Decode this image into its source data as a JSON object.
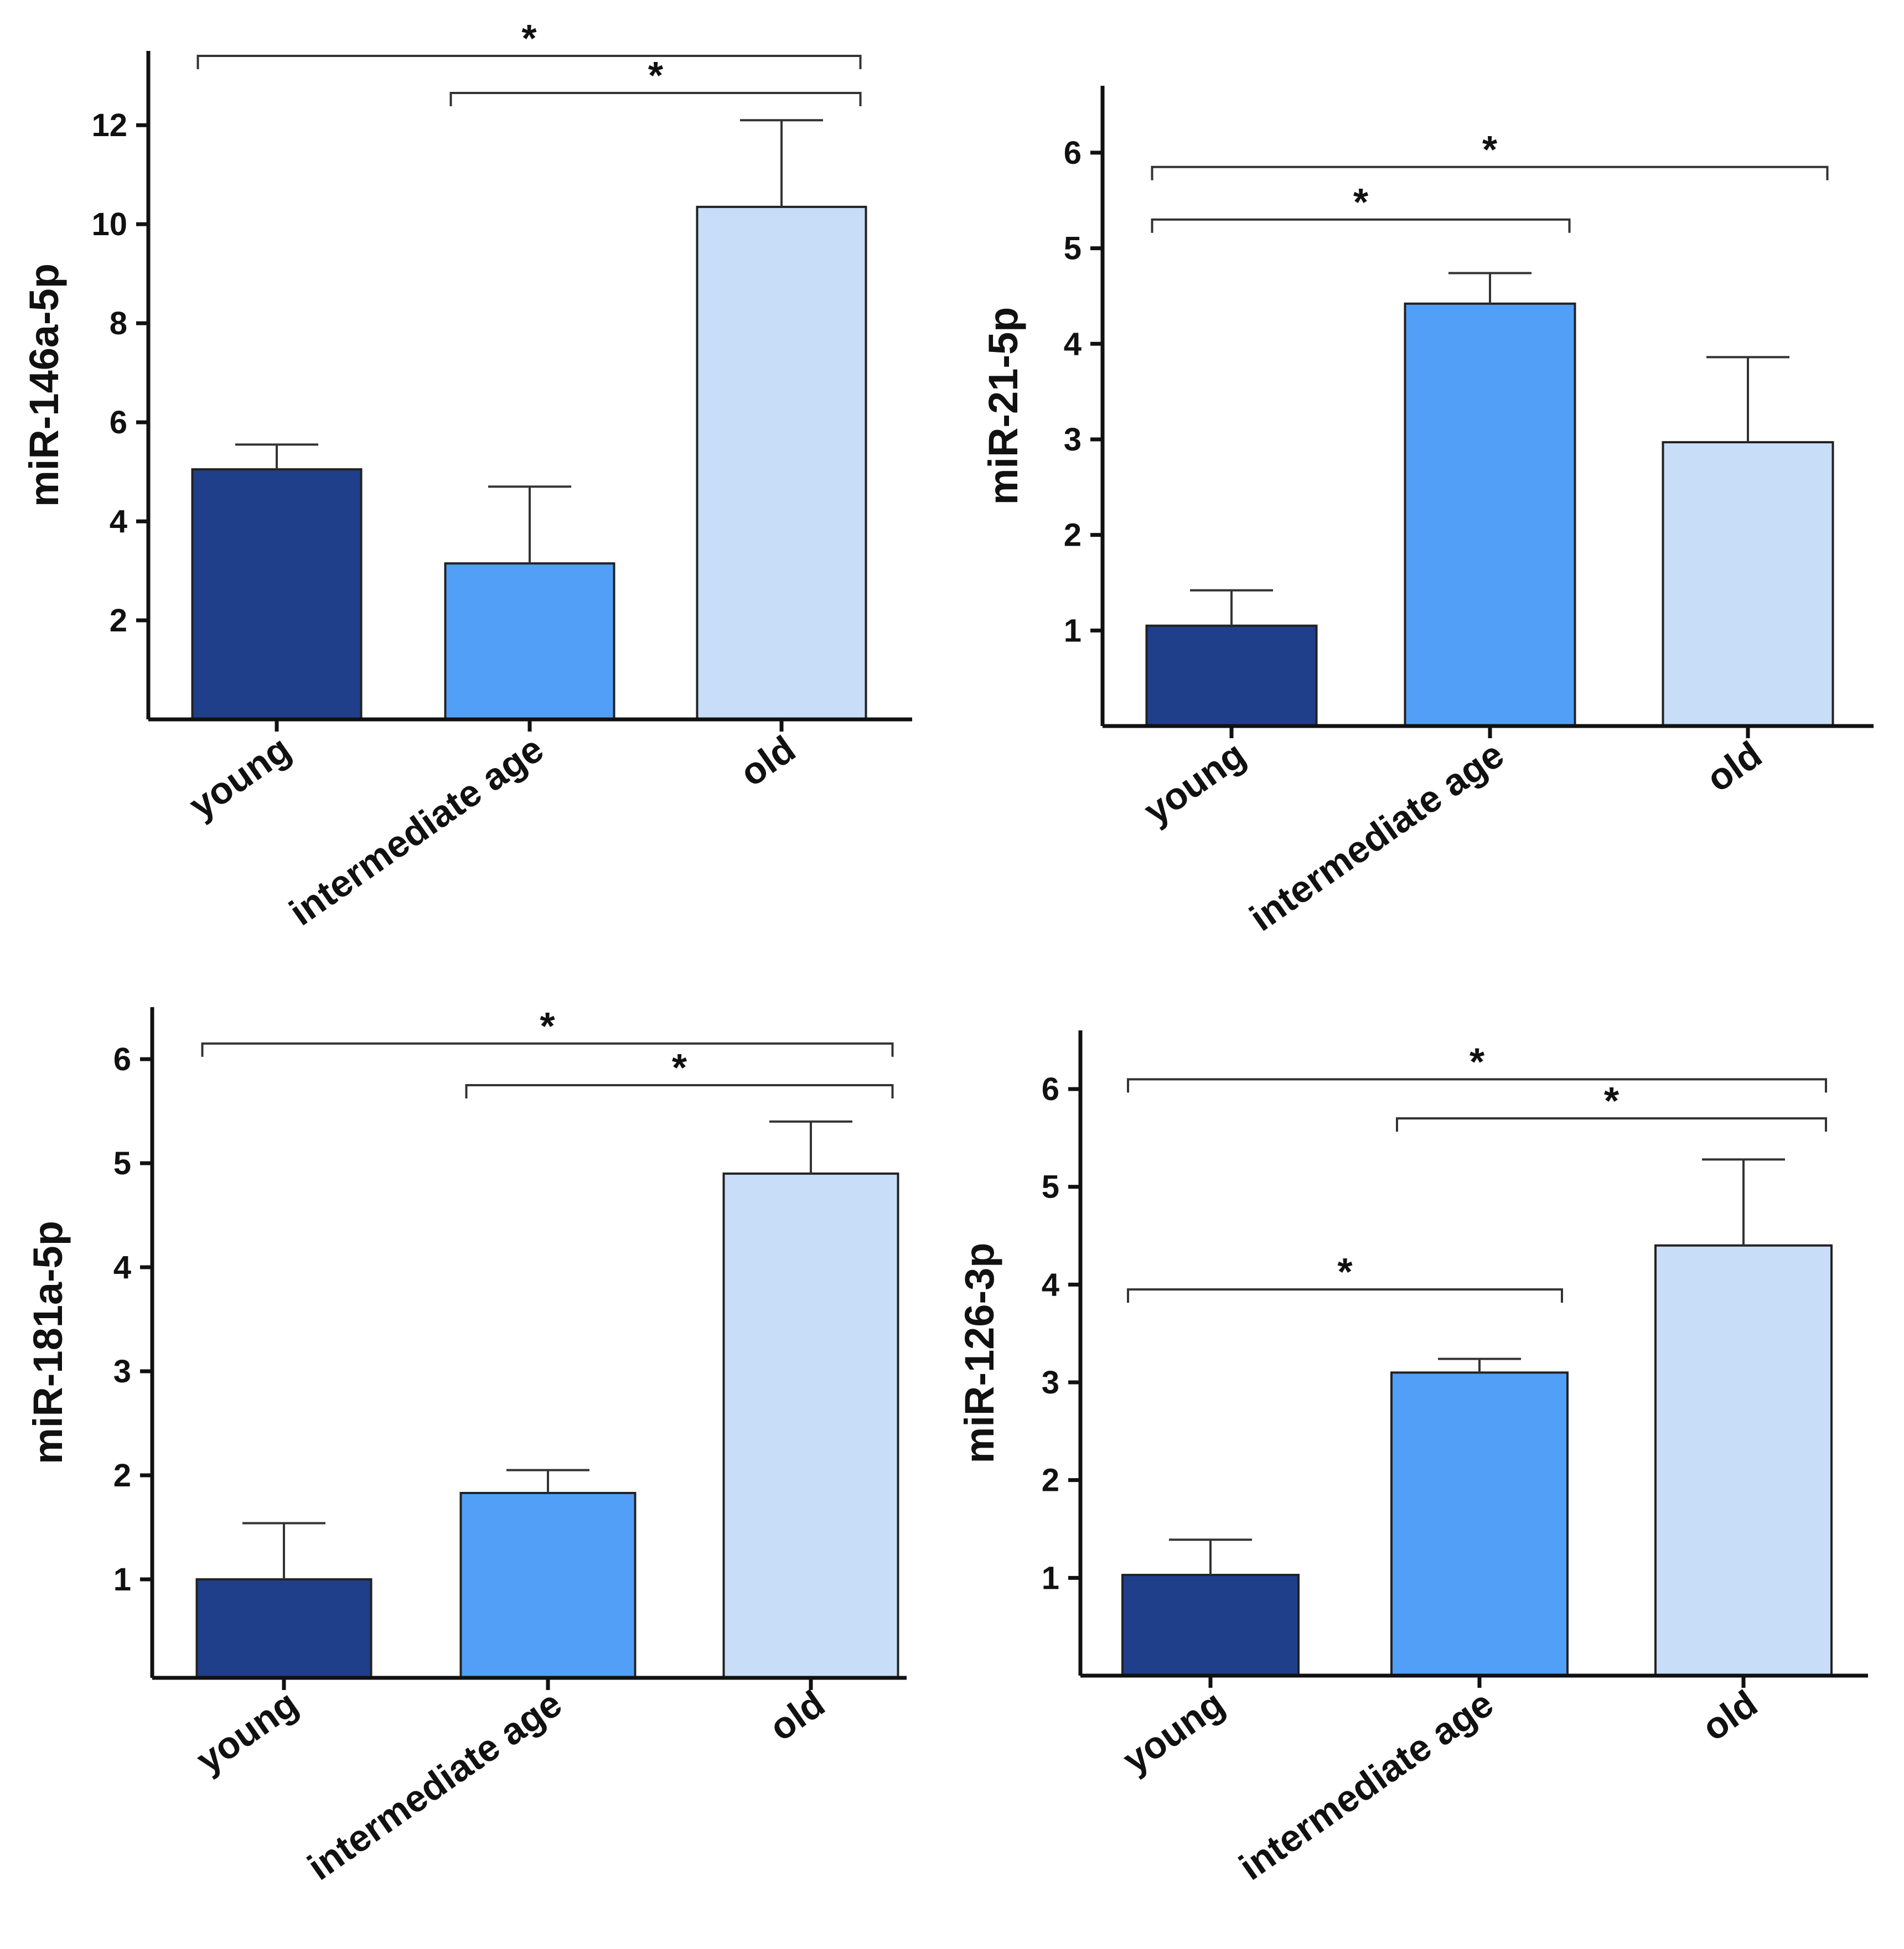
{
  "colors": {
    "young": "#1f3f8a",
    "intermediate age": "#529ff8",
    "old": "#c8ddf7"
  },
  "chart_data": [
    {
      "type": "bar",
      "ylabel": "miR-146a-5p",
      "categories": [
        "young",
        "intermediate age",
        "old"
      ],
      "values": [
        5.05,
        3.15,
        10.35
      ],
      "error_upper": [
        5.55,
        4.7,
        12.1
      ],
      "yticks": [
        2,
        4,
        6,
        8,
        10,
        12
      ],
      "ylim": [
        0,
        13.5
      ],
      "significance": [
        {
          "from": 0,
          "to": 2,
          "y": 13.4,
          "label": "*"
        },
        {
          "from": 1,
          "to": 2,
          "y": 12.65,
          "label": "*"
        }
      ]
    },
    {
      "type": "bar",
      "ylabel": "miR-21-5p",
      "categories": [
        "young",
        "intermediate age",
        "old"
      ],
      "values": [
        1.05,
        4.42,
        2.97
      ],
      "error_upper": [
        1.42,
        4.74,
        3.86
      ],
      "yticks": [
        1,
        2,
        3,
        4,
        5,
        6
      ],
      "ylim": [
        0,
        6.7
      ],
      "significance": [
        {
          "from": 0,
          "to": 2,
          "y": 5.85,
          "label": "*"
        },
        {
          "from": 0,
          "to": 1,
          "y": 5.3,
          "label": "*"
        }
      ]
    },
    {
      "type": "bar",
      "ylabel": "miR-181a-5p",
      "categories": [
        "young",
        "intermediate age",
        "old"
      ],
      "values": [
        1.0,
        1.83,
        4.9
      ],
      "error_upper": [
        1.54,
        2.05,
        5.4
      ],
      "yticks": [
        1,
        2,
        3,
        4,
        5,
        6
      ],
      "ylim": [
        0,
        6.5
      ],
      "significance": [
        {
          "from": 0,
          "to": 2,
          "y": 6.15,
          "label": "*"
        },
        {
          "from": 1,
          "to": 2,
          "y": 5.75,
          "label": "*"
        }
      ]
    },
    {
      "type": "bar",
      "ylabel": "miR-126-3p",
      "categories": [
        "young",
        "intermediate age",
        "old"
      ],
      "values": [
        1.03,
        3.1,
        4.4
      ],
      "error_upper": [
        1.39,
        3.24,
        5.28
      ],
      "yticks": [
        1,
        2,
        3,
        4,
        5,
        6
      ],
      "ylim": [
        0,
        6.6
      ],
      "significance": [
        {
          "from": 0,
          "to": 2,
          "y": 6.1,
          "label": "*"
        },
        {
          "from": 1,
          "to": 2,
          "y": 5.7,
          "label": "*"
        },
        {
          "from": 0,
          "to": 1,
          "y": 3.95,
          "label": "*"
        }
      ]
    }
  ]
}
